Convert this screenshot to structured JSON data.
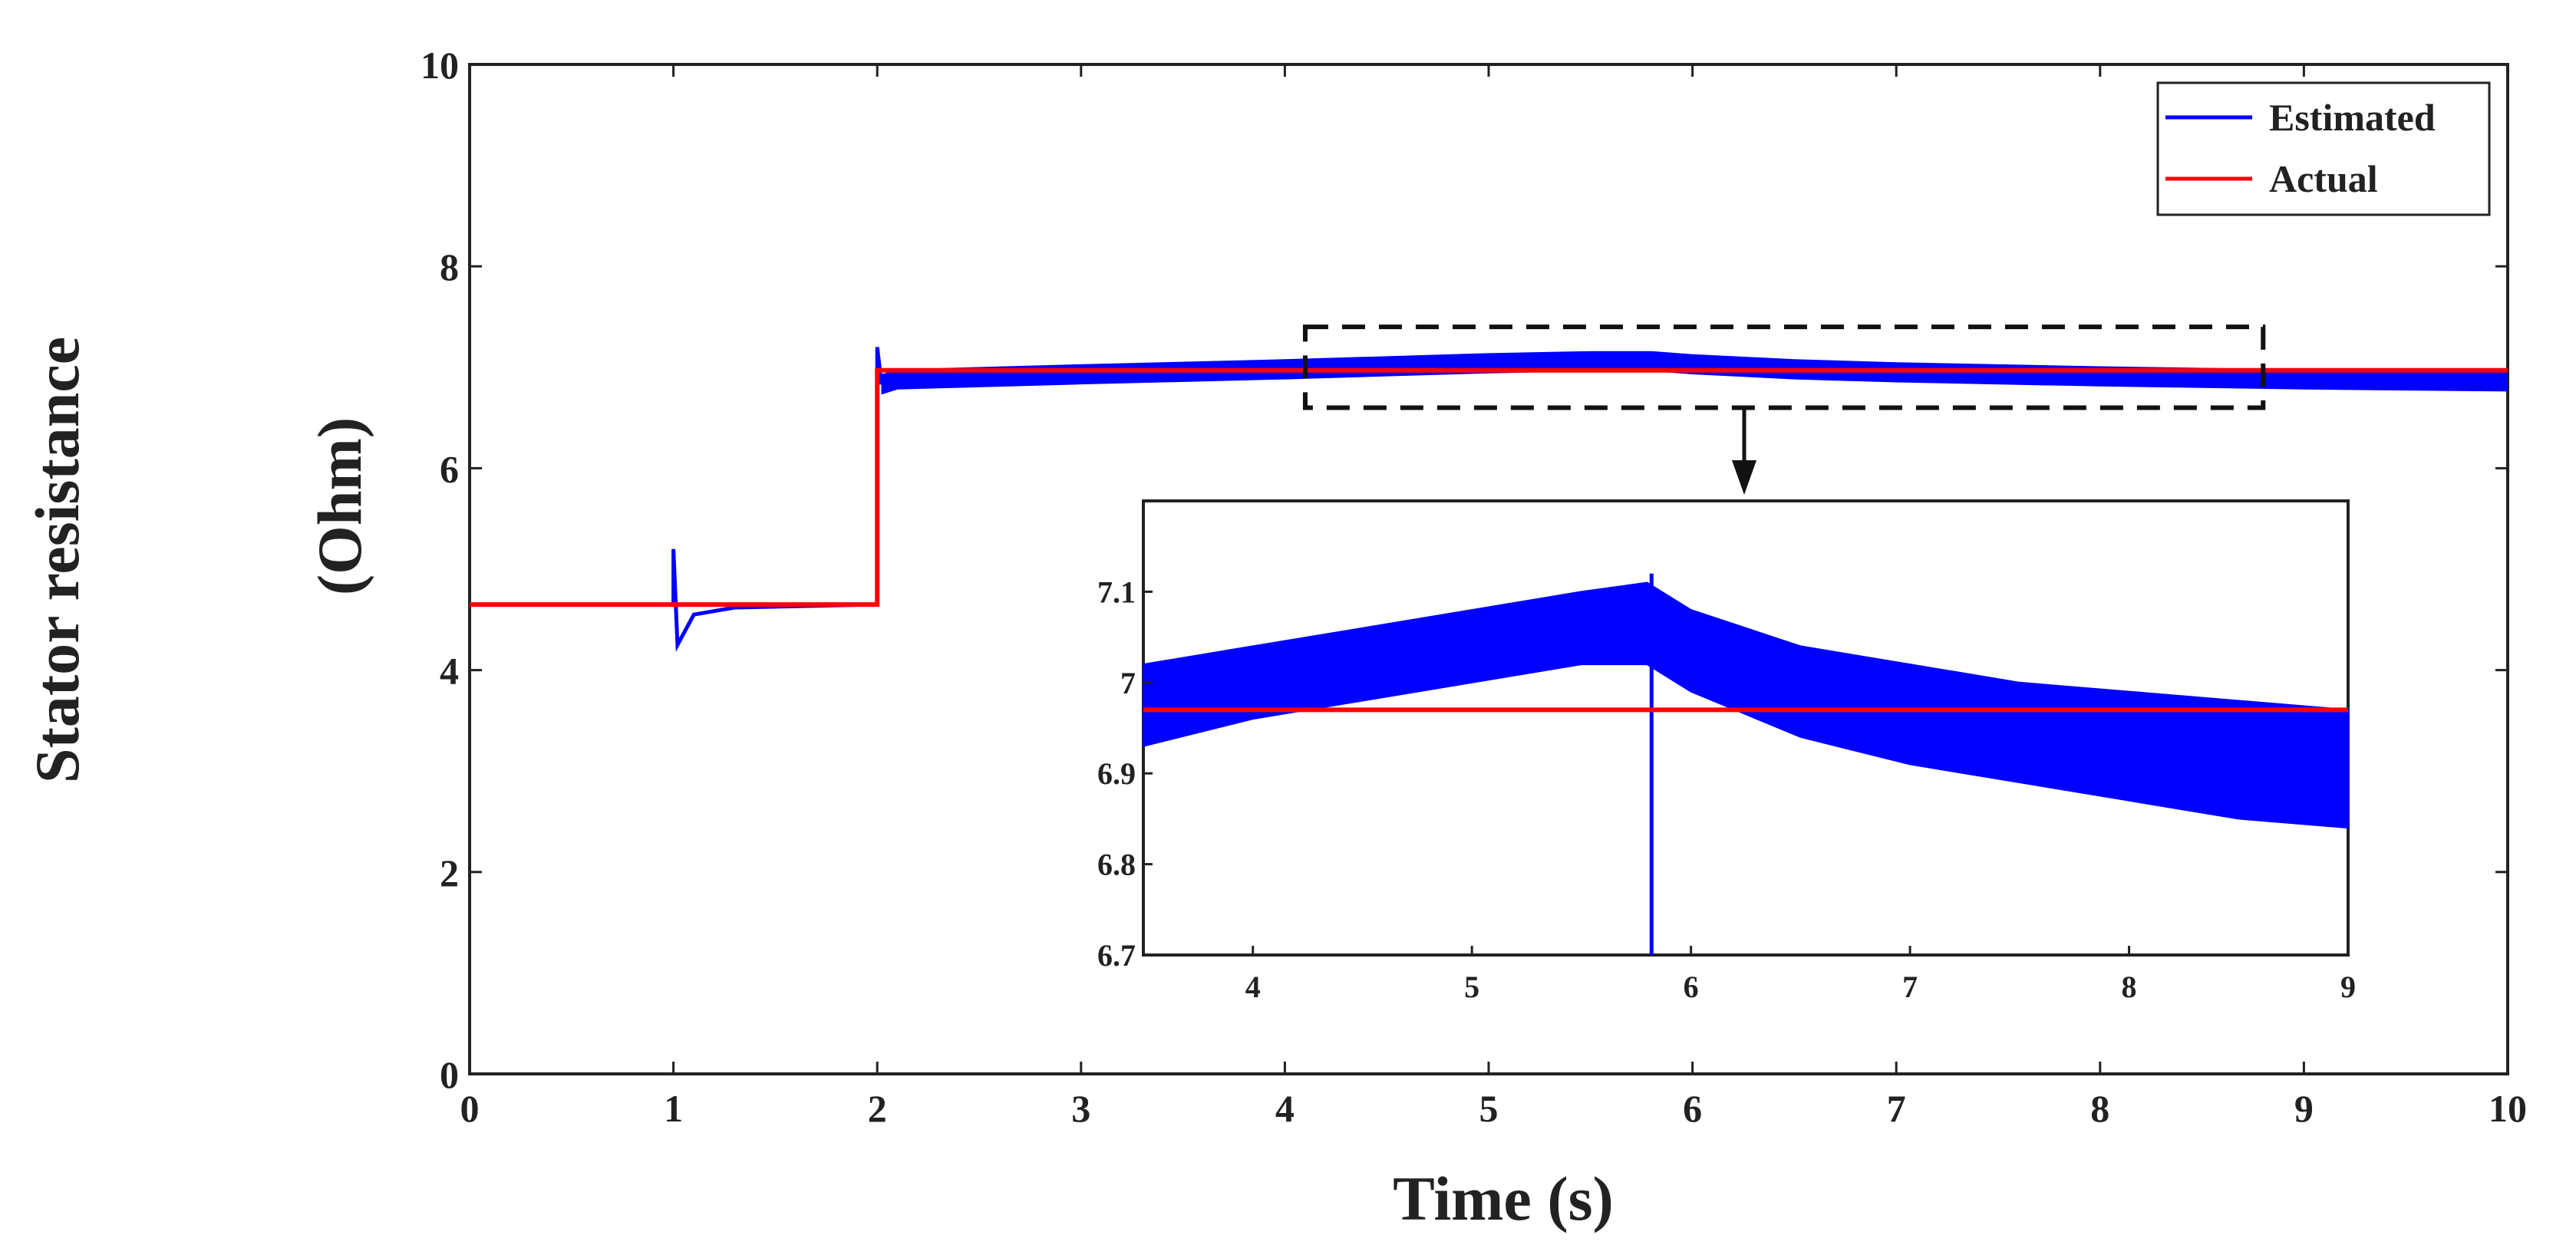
{
  "chart_data": {
    "type": "line",
    "main": {
      "xlabel": "Time (s)",
      "ylabel_line1": "Stator resistance",
      "ylabel_line2": "(Ohm)",
      "xlim": [
        0,
        10
      ],
      "ylim": [
        0,
        10
      ],
      "xticks": [
        0,
        1,
        2,
        3,
        4,
        5,
        6,
        7,
        8,
        9,
        10
      ],
      "yticks": [
        0,
        2,
        4,
        6,
        8,
        10
      ],
      "grid": false,
      "legend_position": "top-right",
      "legend": [
        {
          "name": "Estimated",
          "color": "#0000ff"
        },
        {
          "name": "Actual",
          "color": "#ff0000"
        }
      ],
      "series": [
        {
          "name": "Estimated",
          "color": "#0000ff",
          "x": [
            0,
            1,
            1.0,
            1.02,
            1.1,
            1.3,
            1.98,
            2,
            2.0,
            2.02,
            2.1,
            3,
            4,
            4.5,
            5,
            5.5,
            5.8,
            6,
            6.5,
            7,
            8,
            9,
            10
          ],
          "y": [
            4.65,
            4.65,
            5.2,
            4.25,
            4.55,
            4.62,
            4.65,
            4.65,
            7.2,
            6.85,
            6.9,
            6.95,
            7.0,
            7.03,
            7.06,
            7.08,
            7.08,
            7.05,
            7.0,
            6.97,
            6.93,
            6.9,
            6.88
          ]
        },
        {
          "name": "Actual",
          "color": "#ff0000",
          "x": [
            0,
            2,
            2,
            10
          ],
          "y": [
            4.65,
            4.65,
            6.97,
            6.97
          ]
        }
      ],
      "zoom_region": {
        "x": [
          4.1,
          8.8
        ],
        "y": [
          6.6,
          7.4
        ]
      }
    },
    "inset": {
      "xlim": [
        3.5,
        9
      ],
      "ylim": [
        6.7,
        7.2
      ],
      "xticks": [
        4,
        5,
        6,
        7,
        8,
        9
      ],
      "yticks": [
        6.7,
        6.8,
        6.9,
        7,
        7.1
      ],
      "ytick_labels": [
        "6.7",
        "6.8",
        "6.9",
        "7",
        "7.1"
      ],
      "series": [
        {
          "name": "Estimated upper envelope",
          "color": "#0000ff",
          "x": [
            3.5,
            4,
            4.5,
            5,
            5.5,
            5.8,
            6,
            6.5,
            7,
            7.5,
            8,
            8.5,
            9
          ],
          "y": [
            7.02,
            7.04,
            7.06,
            7.08,
            7.1,
            7.11,
            7.08,
            7.04,
            7.02,
            7.0,
            6.99,
            6.98,
            6.97
          ]
        },
        {
          "name": "Estimated lower envelope",
          "color": "#0000ff",
          "x": [
            3.5,
            4,
            4.5,
            5,
            5.5,
            5.8,
            6,
            6.5,
            7,
            7.5,
            8,
            8.5,
            9
          ],
          "y": [
            6.93,
            6.96,
            6.98,
            7.0,
            7.02,
            7.02,
            6.99,
            6.94,
            6.91,
            6.89,
            6.87,
            6.85,
            6.84
          ]
        },
        {
          "name": "Actual",
          "color": "#ff0000",
          "x": [
            3.5,
            9
          ],
          "y": [
            6.97,
            6.97
          ]
        }
      ],
      "spike": {
        "x": 5.82,
        "y": [
          6.7,
          7.12
        ]
      }
    }
  }
}
